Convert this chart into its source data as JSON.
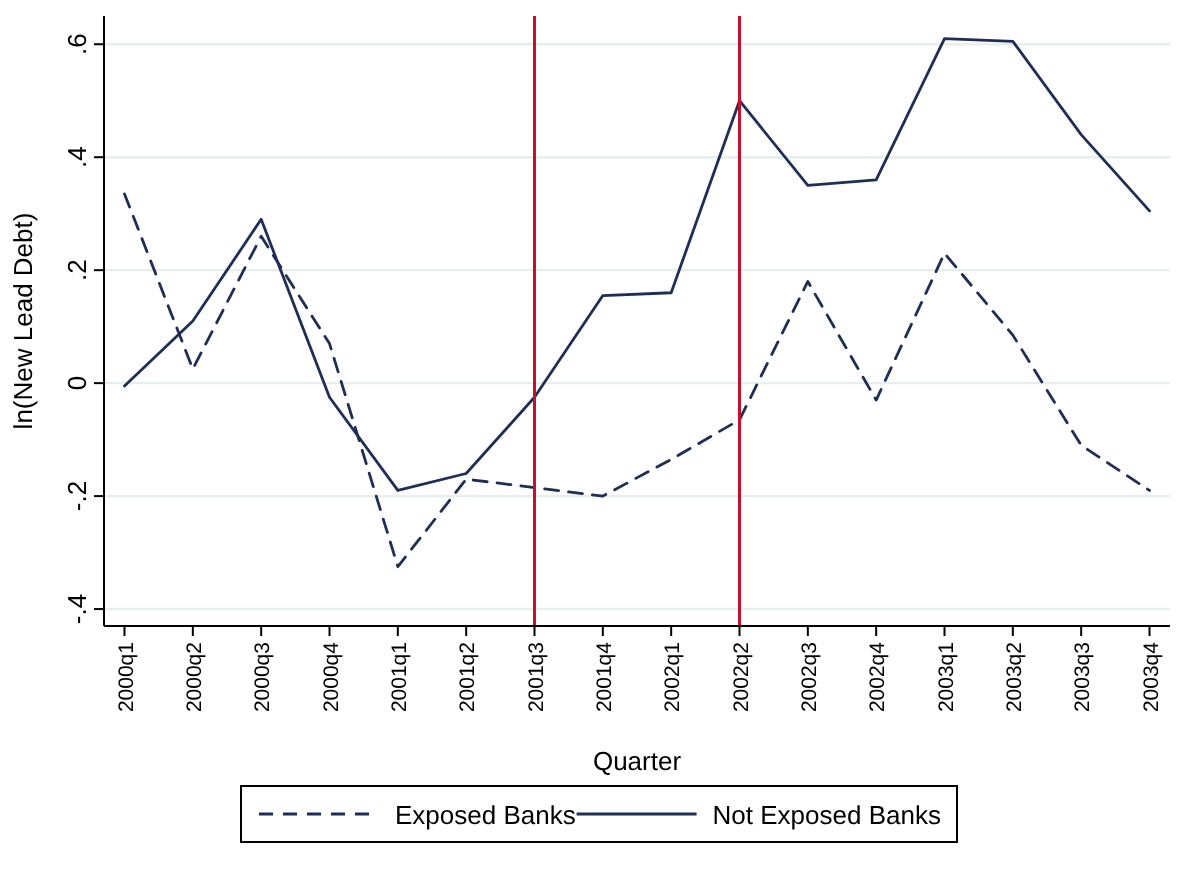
{
  "chart_data": {
    "type": "line",
    "xlabel": "Quarter",
    "ylabel": "ln(New Lead Debt)",
    "categories": [
      "2000q1",
      "2000q2",
      "2000q3",
      "2000q4",
      "2001q1",
      "2001q2",
      "2001q3",
      "2001q4",
      "2002q1",
      "2002q2",
      "2002q3",
      "2002q4",
      "2003q1",
      "2003q2",
      "2003q3",
      "2003q4"
    ],
    "series": [
      {
        "name": "Exposed Banks",
        "color": "#1f2e55",
        "line_style": "dashed",
        "values": [
          0.335,
          0.025,
          0.26,
          0.07,
          -0.325,
          -0.17,
          -0.185,
          -0.2,
          -0.135,
          -0.065,
          0.18,
          -0.03,
          0.23,
          0.085,
          -0.11,
          -0.19
        ]
      },
      {
        "name": "Not Exposed Banks",
        "color": "#1f2e55",
        "line_style": "solid",
        "values": [
          -0.005,
          0.11,
          0.29,
          -0.025,
          -0.19,
          -0.16,
          -0.025,
          0.155,
          0.16,
          0.5,
          0.35,
          0.36,
          0.61,
          0.605,
          0.44,
          0.305
        ]
      }
    ],
    "ylim": [
      -0.43,
      0.65
    ],
    "yticks": [
      {
        "value": -0.4,
        "label": "-.4"
      },
      {
        "value": -0.2,
        "label": "-.2"
      },
      0,
      {
        "value": 0.2,
        "label": ".2"
      },
      {
        "value": 0.4,
        "label": ".4"
      },
      {
        "value": 0.6,
        "label": ".6"
      }
    ],
    "ref_lines": [
      {
        "axis": "x",
        "value": "2001q3",
        "color": "#c8102e"
      },
      {
        "axis": "x",
        "value": "2002q2",
        "color": "#c8102e"
      }
    ],
    "grid": "y",
    "legend": "bottom",
    "marker": "none"
  }
}
